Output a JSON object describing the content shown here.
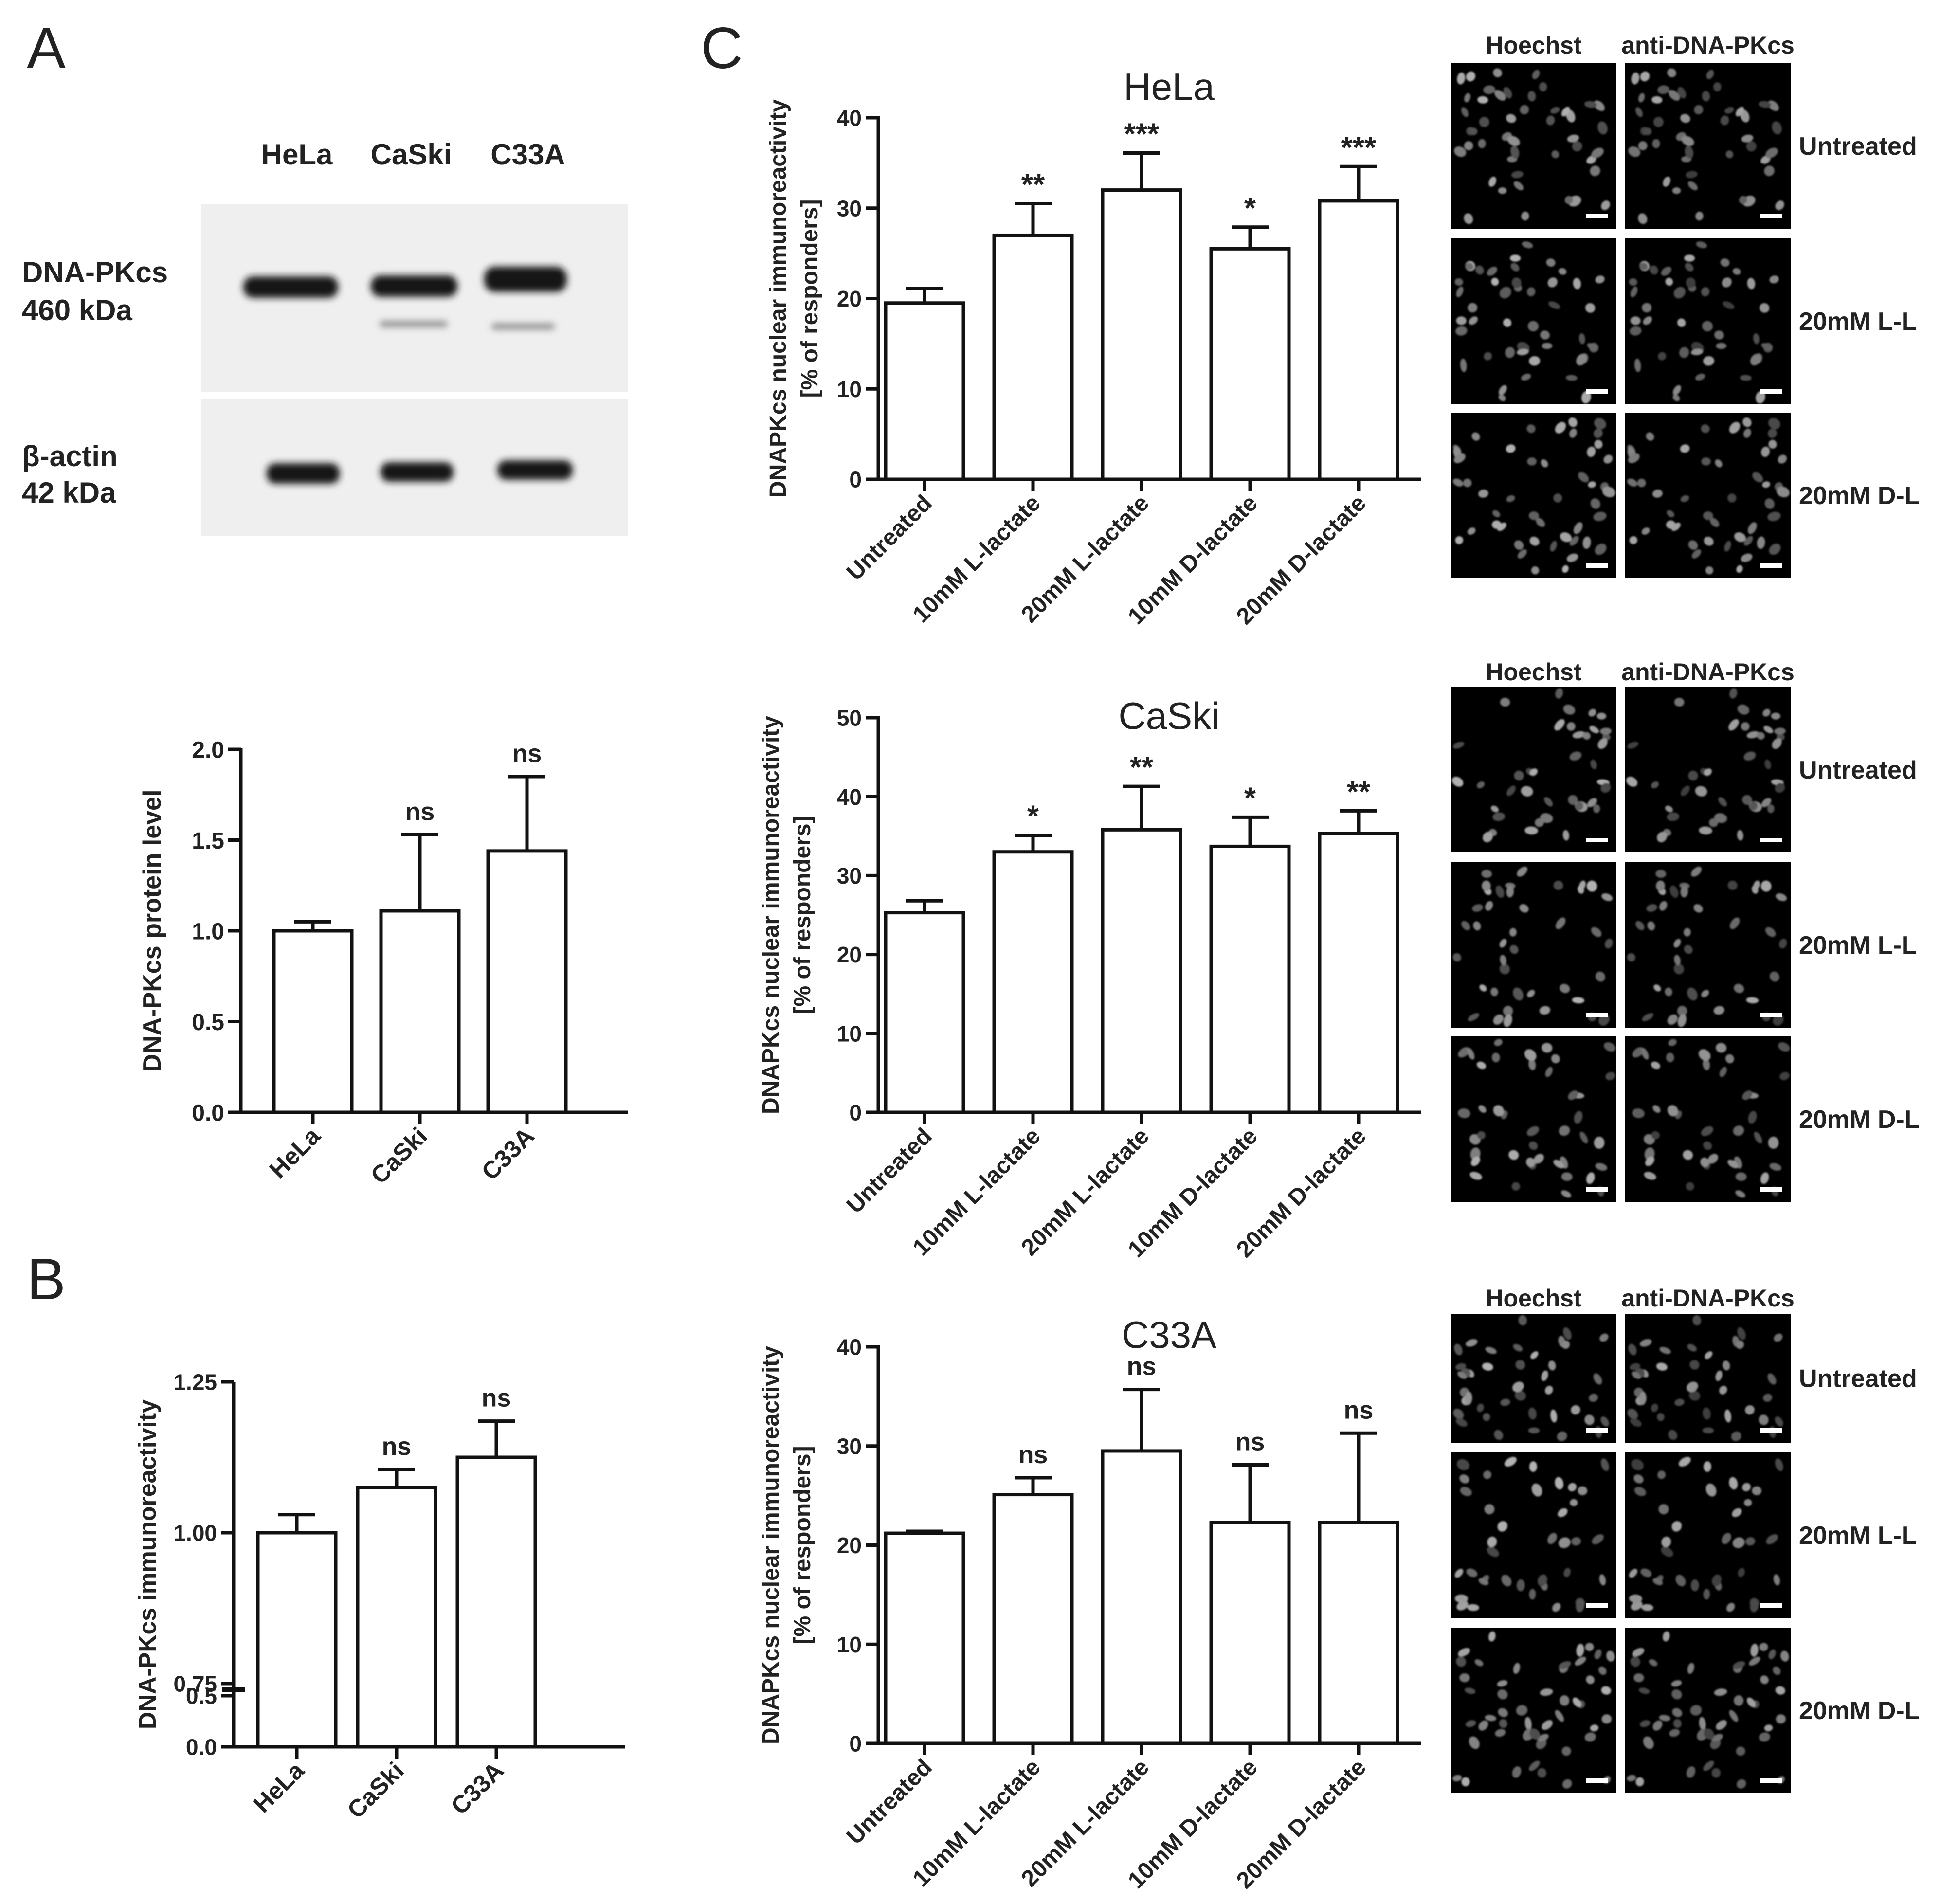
{
  "panel_letters": {
    "a": "A",
    "b": "B",
    "c": "C"
  },
  "western_blot": {
    "lanes": [
      "HeLa",
      "CaSki",
      "C33A"
    ],
    "bands": [
      {
        "label_line1": "DNA-PKcs",
        "label_line2": "460 kDa"
      },
      {
        "label_line1": "β-actin",
        "label_line2": "42 kDa"
      }
    ]
  },
  "microscopy": {
    "column_headers": [
      "Hoechst",
      "anti-DNA-PKcs"
    ],
    "row_labels": [
      "Untreated",
      "20mM L-L",
      "20mM D-L"
    ]
  },
  "chart_data": [
    {
      "id": "A_bar",
      "type": "bar",
      "categories": [
        "HeLa",
        "CaSki",
        "C33A"
      ],
      "values": [
        1.0,
        1.11,
        1.44
      ],
      "errors": [
        0.05,
        0.42,
        0.41
      ],
      "annotations": [
        "",
        "ns",
        "ns"
      ],
      "ylabel": "DNA-PKcs protein level",
      "ylim": [
        0,
        2.0
      ],
      "yticks": [
        "0.0",
        "0.5",
        "1.0",
        "1.5",
        "2.0"
      ]
    },
    {
      "id": "B_bar",
      "type": "bar",
      "categories": [
        "HeLa",
        "CaSki",
        "C33A"
      ],
      "values": [
        1.0,
        1.075,
        1.125
      ],
      "errors": [
        0.03,
        0.03,
        0.06
      ],
      "annotations": [
        "",
        "ns",
        "ns"
      ],
      "ylabel": "DNA-PKcs immunoreactivity",
      "axis_break": {
        "lower": [
          0,
          0.5
        ],
        "upper": [
          0.75,
          1.25
        ]
      },
      "yticks": [
        "0.0",
        "0.5",
        "0.75",
        "1.00",
        "1.25"
      ]
    },
    {
      "id": "C_hela",
      "type": "bar",
      "title": "HeLa",
      "categories": [
        "Untreated",
        "10mM L-lactate",
        "20mM L-lactate",
        "10mM D-lactate",
        "20mM D-lactate"
      ],
      "values": [
        19.5,
        27.0,
        32.0,
        25.5,
        30.8
      ],
      "errors": [
        1.6,
        3.5,
        4.1,
        2.4,
        3.8
      ],
      "annotations": [
        "",
        "**",
        "***",
        "*",
        "***"
      ],
      "ylabel_line1": "DNAPKcs nuclear immunoreactivity",
      "ylabel_line2": "[% of responders]",
      "ylim": [
        0,
        40
      ],
      "yticks": [
        "0",
        "10",
        "20",
        "30",
        "40"
      ]
    },
    {
      "id": "C_caski",
      "type": "bar",
      "title": "CaSki",
      "categories": [
        "Untreated",
        "10mM L-lactate",
        "20mM L-lactate",
        "10mM D-lactate",
        "20mM D-lactate"
      ],
      "values": [
        25.3,
        33.0,
        35.8,
        33.7,
        35.3
      ],
      "errors": [
        1.5,
        2.1,
        5.5,
        3.7,
        2.9
      ],
      "annotations": [
        "",
        "*",
        "**",
        "*",
        "**"
      ],
      "ylabel_line1": "DNAPKcs nuclear immunoreactivity",
      "ylabel_line2": "[% of responders]",
      "ylim": [
        0,
        50
      ],
      "yticks": [
        "0",
        "10",
        "20",
        "30",
        "40",
        "50"
      ]
    },
    {
      "id": "C_c33a",
      "type": "bar",
      "title": "C33A",
      "categories": [
        "Untreated",
        "10mM L-lactate",
        "20mM L-lactate",
        "10mM D-lactate",
        "20mM D-lactate"
      ],
      "values": [
        21.2,
        25.1,
        29.5,
        22.3,
        22.3
      ],
      "errors": [
        0.2,
        1.7,
        6.2,
        5.8,
        9.0
      ],
      "annotations": [
        "",
        "ns",
        "ns",
        "ns",
        "ns"
      ],
      "ylabel_line1": "DNAPKcs nuclear immunoreactivity",
      "ylabel_line2": "[% of responders]",
      "ylim": [
        0,
        40
      ],
      "yticks": [
        "0",
        "10",
        "20",
        "30",
        "40"
      ]
    }
  ]
}
